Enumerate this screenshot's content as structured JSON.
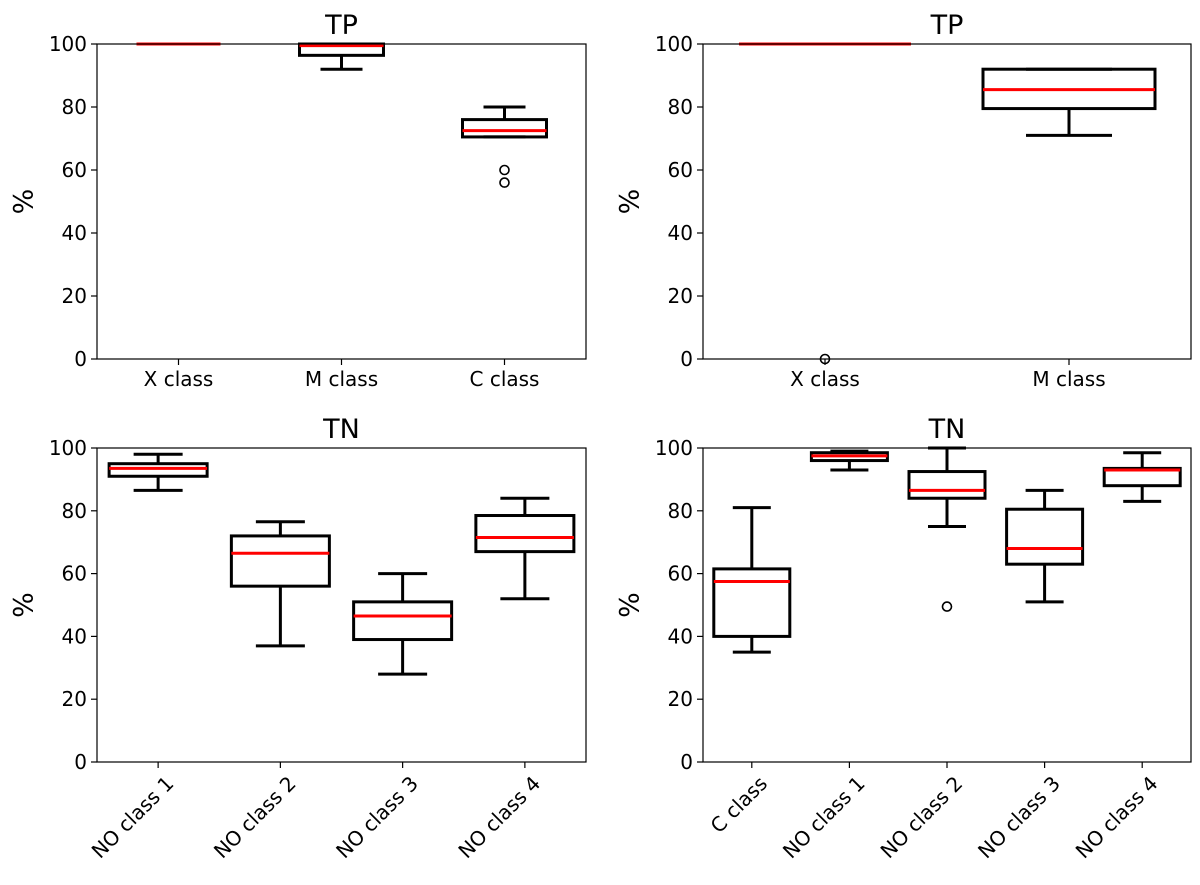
{
  "chart_data": [
    {
      "type": "boxplot",
      "title": "TP",
      "ylabel": "%",
      "ylim": [
        0,
        100
      ],
      "yticks": [
        0,
        20,
        40,
        60,
        80,
        100
      ],
      "categories": [
        "X class",
        "M class",
        "C class"
      ],
      "boxes": [
        {
          "min": 100,
          "q1": 100,
          "median": 100,
          "q3": 100,
          "max": 100,
          "fliers": []
        },
        {
          "min": 92,
          "q1": 96.4,
          "median": 99.5,
          "q3": 100,
          "max": 100,
          "fliers": []
        },
        {
          "min": 70.5,
          "q1": 70.5,
          "median": 72.5,
          "q3": 76,
          "max": 80,
          "fliers": [
            56,
            60
          ]
        }
      ]
    },
    {
      "type": "boxplot",
      "title": "TP",
      "ylabel": "%",
      "ylim": [
        0,
        100
      ],
      "yticks": [
        0,
        20,
        40,
        60,
        80,
        100
      ],
      "categories": [
        "X class",
        "M class"
      ],
      "boxes": [
        {
          "min": 100,
          "q1": 100,
          "median": 100,
          "q3": 100,
          "max": 100,
          "fliers": [
            0
          ]
        },
        {
          "min": 71,
          "q1": 79.5,
          "median": 85.5,
          "q3": 92,
          "max": 92,
          "fliers": []
        }
      ]
    },
    {
      "type": "boxplot",
      "title": "TN",
      "ylabel": "%",
      "ylim": [
        0,
        100
      ],
      "yticks": [
        0,
        20,
        40,
        60,
        80,
        100
      ],
      "categories": [
        "NO class 1",
        "NO class 2",
        "NO class 3",
        "NO class 4"
      ],
      "rotate_labels": true,
      "boxes": [
        {
          "min": 86.5,
          "q1": 91,
          "median": 93.5,
          "q3": 95,
          "max": 98,
          "fliers": []
        },
        {
          "min": 37,
          "q1": 56,
          "median": 66.5,
          "q3": 72,
          "max": 76.5,
          "fliers": []
        },
        {
          "min": 28,
          "q1": 39,
          "median": 46.5,
          "q3": 51,
          "max": 60,
          "fliers": []
        },
        {
          "min": 52,
          "q1": 67,
          "median": 71.5,
          "q3": 78.5,
          "max": 84,
          "fliers": []
        }
      ]
    },
    {
      "type": "boxplot",
      "title": "TN",
      "ylabel": "%",
      "ylim": [
        0,
        100
      ],
      "yticks": [
        0,
        20,
        40,
        60,
        80,
        100
      ],
      "categories": [
        "C class",
        "NO class 1",
        "NO class 2",
        "NO class 3",
        "NO class 4"
      ],
      "rotate_labels": true,
      "boxes": [
        {
          "min": 35,
          "q1": 40,
          "median": 57.5,
          "q3": 61.5,
          "max": 81,
          "fliers": []
        },
        {
          "min": 93,
          "q1": 96,
          "median": 97.5,
          "q3": 98.5,
          "max": 99,
          "fliers": []
        },
        {
          "min": 75,
          "q1": 84,
          "median": 86.5,
          "q3": 92.5,
          "max": 100,
          "fliers": [
            49.5
          ]
        },
        {
          "min": 51,
          "q1": 63,
          "median": 68,
          "q3": 80.5,
          "max": 86.5,
          "fliers": []
        },
        {
          "min": 83,
          "q1": 88,
          "median": 93,
          "q3": 93.5,
          "max": 98.5,
          "fliers": []
        }
      ]
    }
  ]
}
